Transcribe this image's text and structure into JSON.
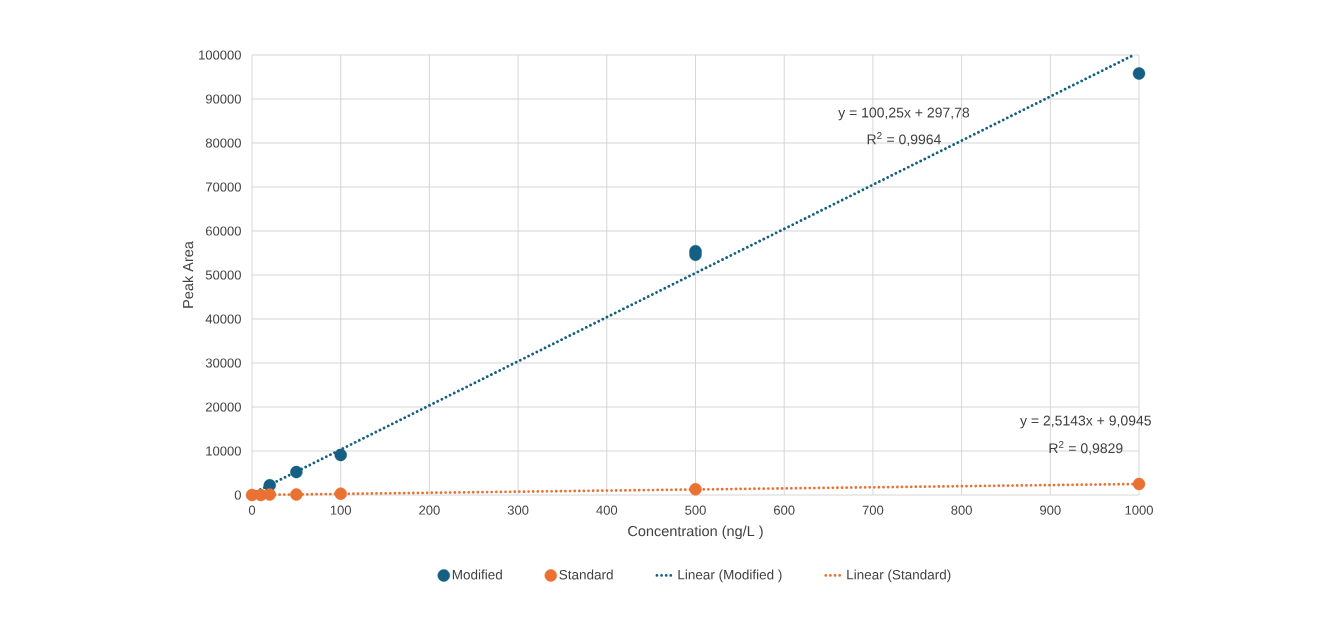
{
  "chart_data": {
    "type": "scatter",
    "xlabel": "Concentration (ng/L )",
    "ylabel": "Peak Area",
    "xlim": [
      0,
      1000
    ],
    "ylim": [
      0,
      100000
    ],
    "xticks": [
      0,
      100,
      200,
      300,
      400,
      500,
      600,
      700,
      800,
      900,
      1000
    ],
    "yticks": [
      0,
      10000,
      20000,
      30000,
      40000,
      50000,
      60000,
      70000,
      80000,
      90000,
      100000
    ],
    "grid": true,
    "legend": "bottom",
    "series": [
      {
        "name": "Modified",
        "color": "#156082",
        "marker": "circle",
        "x": [
          20,
          50,
          100,
          500,
          500,
          1000
        ],
        "values": [
          2200,
          5200,
          9100,
          55400,
          54600,
          95800
        ]
      },
      {
        "name": "Standard",
        "color": "#e97132",
        "marker": "circle",
        "x": [
          0,
          10,
          20,
          50,
          100,
          500,
          1000
        ],
        "values": [
          0,
          0,
          100,
          100,
          300,
          1300,
          2500
        ]
      },
      {
        "name": "Linear (Modified )",
        "type": "line",
        "line_style": "dotted",
        "marker": "none",
        "color": "#156082",
        "x": [
          0,
          994
        ],
        "values": [
          300,
          100000
        ]
      },
      {
        "name": "Linear (Standard)",
        "type": "line",
        "line_style": "dotted",
        "marker": "none",
        "color": "#e97132",
        "x": [
          0,
          1000
        ],
        "values": [
          0,
          2500
        ]
      }
    ],
    "annotations": [
      "y = 100,25x + 297,78",
      "R$^{2}$ = 0,9964",
      "y = 2,5143x + 9,0945",
      "R$^{2}$ = 0,9829"
    ]
  }
}
